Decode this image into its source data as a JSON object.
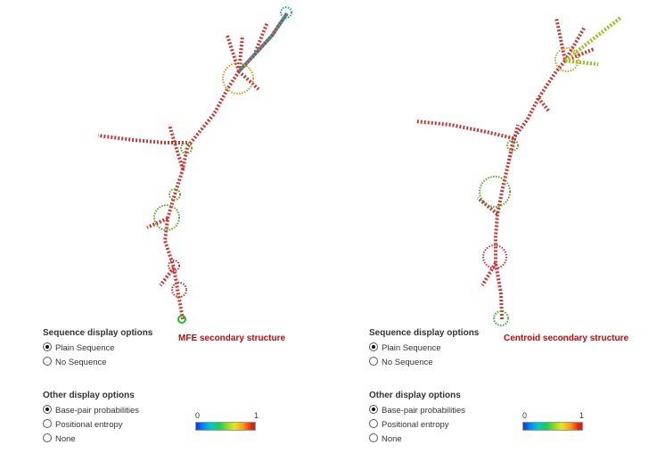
{
  "panels": [
    {
      "caption": "MFE secondary structure",
      "sequence_options": {
        "title": "Sequence display options",
        "options": [
          {
            "label": "Plain Sequence",
            "checked": true
          },
          {
            "label": "No Sequence",
            "checked": false
          }
        ]
      },
      "other_options": {
        "title": "Other display options",
        "options": [
          {
            "label": "Base-pair probabilities",
            "checked": true
          },
          {
            "label": "Positional entropy",
            "checked": false
          },
          {
            "label": "None",
            "checked": false
          }
        ]
      },
      "scale": {
        "min": "0",
        "max": "1"
      }
    },
    {
      "caption": "Centroid secondary structure",
      "sequence_options": {
        "title": "Sequence display options",
        "options": [
          {
            "label": "Plain Sequence",
            "checked": true
          },
          {
            "label": "No Sequence",
            "checked": false
          }
        ]
      },
      "other_options": {
        "title": "Other display options",
        "options": [
          {
            "label": "Base-pair probabilities",
            "checked": true
          },
          {
            "label": "Positional entropy",
            "checked": false
          },
          {
            "label": "None",
            "checked": false
          }
        ]
      },
      "scale": {
        "min": "0",
        "max": "1"
      }
    }
  ],
  "colors": {
    "caption": "#d40000",
    "scale_stops": [
      "#1a33cc",
      "#0088ff",
      "#00c8c8",
      "#1fcc55",
      "#9ddd22",
      "#e8e81a",
      "#ff9a12",
      "#e52a12",
      "#c81e1e"
    ]
  }
}
